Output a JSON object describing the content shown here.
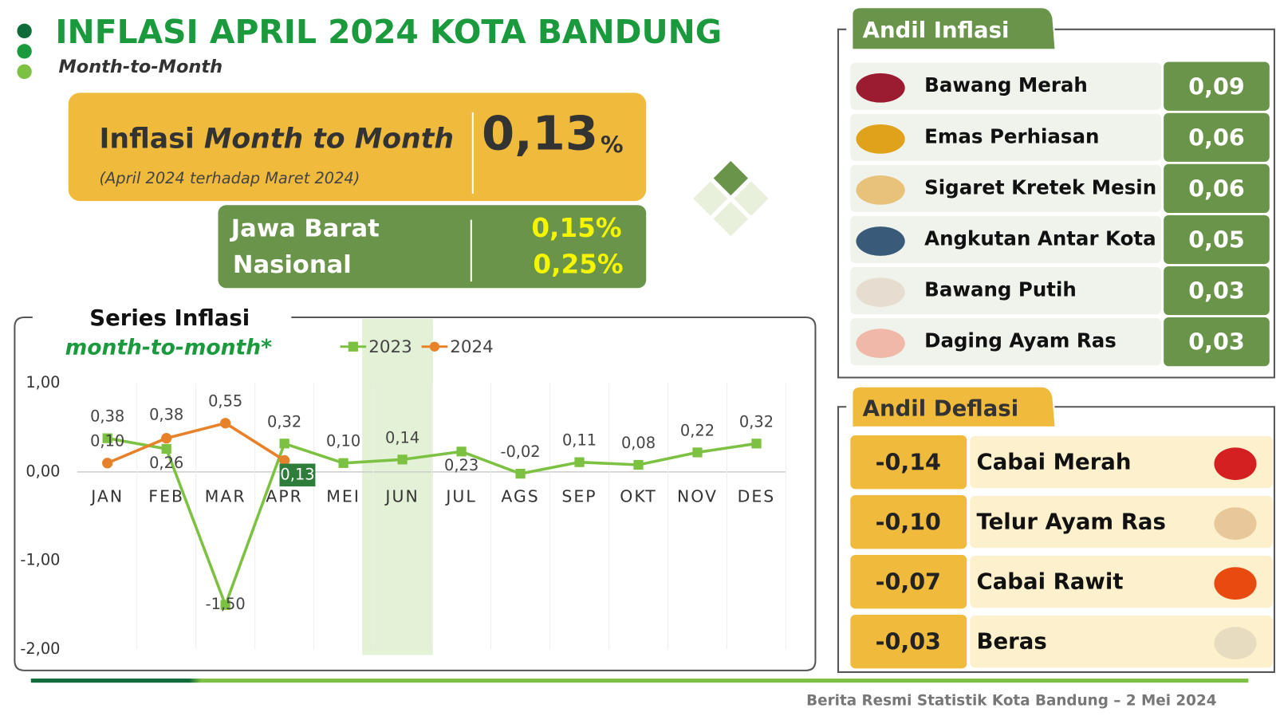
{
  "header": {
    "title": "INFLASI APRIL 2024 KOTA BANDUNG",
    "subtitle": "Month-to-Month"
  },
  "main": {
    "label": "Inflasi",
    "label_italic": "Month to Month",
    "note": "(April 2024 terhadap Maret 2024)",
    "value": "0,13",
    "unit": "%"
  },
  "regional": [
    {
      "name": "Jawa Barat",
      "value": "0,15%"
    },
    {
      "name": "Nasional",
      "value": "0,25%"
    }
  ],
  "chart_data": {
    "type": "line",
    "title": "Series Inflasi",
    "subtitle": "month-to-month*",
    "categories": [
      "JAN",
      "FEB",
      "MAR",
      "APR",
      "MEI",
      "JUN",
      "JUL",
      "AGS",
      "SEP",
      "OKT",
      "NOV",
      "DES"
    ],
    "series": [
      {
        "name": "2023",
        "color": "#7dc142",
        "marker": "square",
        "values": [
          0.38,
          0.26,
          -1.5,
          0.32,
          0.1,
          0.14,
          0.23,
          -0.02,
          0.11,
          0.08,
          0.22,
          0.32
        ],
        "value_labels": [
          "0,38",
          "0,26",
          "-1,50",
          "0,32",
          "0,10",
          "0,14",
          "0,23",
          "-0,02",
          "0,11",
          "0,08",
          "0,22",
          "0,32"
        ]
      },
      {
        "name": "2024",
        "color": "#e8822a",
        "marker": "circle",
        "values": [
          0.1,
          0.38,
          0.55,
          0.13,
          null,
          null,
          null,
          null,
          null,
          null,
          null,
          null
        ],
        "value_labels": [
          "0,10",
          "0,38",
          "0,55",
          "0,13",
          null,
          null,
          null,
          null,
          null,
          null,
          null,
          null
        ]
      }
    ],
    "ylim": [
      -2,
      1
    ],
    "yticks": [
      {
        "value": -2,
        "label": "-2,00"
      },
      {
        "value": -1,
        "label": "-1,00"
      },
      {
        "value": 0,
        "label": "0,00"
      },
      {
        "value": 1,
        "label": "1,00"
      }
    ],
    "grid": true
  },
  "andil_inflasi": {
    "title": "Andil Inflasi",
    "items": [
      {
        "name": "Bawang Merah",
        "value": "0,09"
      },
      {
        "name": "Emas Perhiasan",
        "value": "0,06"
      },
      {
        "name": "Sigaret Kretek Mesin",
        "value": "0,06"
      },
      {
        "name": "Angkutan Antar Kota",
        "value": "0,05"
      },
      {
        "name": "Bawang Putih",
        "value": "0,03"
      },
      {
        "name": "Daging Ayam Ras",
        "value": "0,03"
      }
    ]
  },
  "andil_deflasi": {
    "title": "Andil Deflasi",
    "items": [
      {
        "name": "Cabai Merah",
        "value": "-0,14"
      },
      {
        "name": "Telur Ayam Ras",
        "value": "-0,10"
      },
      {
        "name": "Cabai Rawit",
        "value": "-0,07"
      },
      {
        "name": "Beras",
        "value": "-0,03"
      }
    ]
  },
  "footer": "Berita Resmi Statistik Kota Bandung –  2 Mei 2024"
}
